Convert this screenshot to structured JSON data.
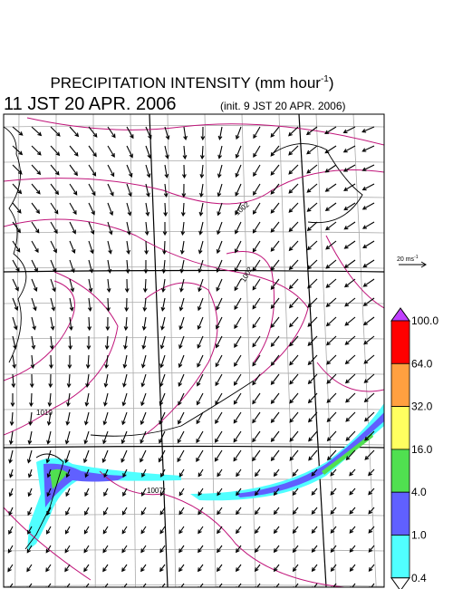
{
  "header": {
    "title_main": "PRECIPITATION INTENSITY (mm hour",
    "title_exponent": "-1",
    "title_end": ")",
    "valid_time": "11 JST 20 APR. 2006",
    "init_time": "(init. 9 JST 20 APR. 2006)"
  },
  "wind_scale": {
    "label_main": "20 ms",
    "label_exponent": "-1"
  },
  "isobar_labels": [
    "1002",
    "1002",
    "1010",
    "1007"
  ],
  "colorbar": {
    "levels": [
      {
        "label": "100.0",
        "color": "#ff0000"
      },
      {
        "label": "64.0",
        "color": "#ffa040"
      },
      {
        "label": "32.0",
        "color": "#ffff60"
      },
      {
        "label": "16.0",
        "color": "#50e050"
      },
      {
        "label": "4.0",
        "color": "#6060ff"
      },
      {
        "label": "1.0",
        "color": "#50ffff"
      },
      {
        "label": "0.4",
        "color": "#ffffff"
      }
    ],
    "top_color": "#c040ff"
  }
}
